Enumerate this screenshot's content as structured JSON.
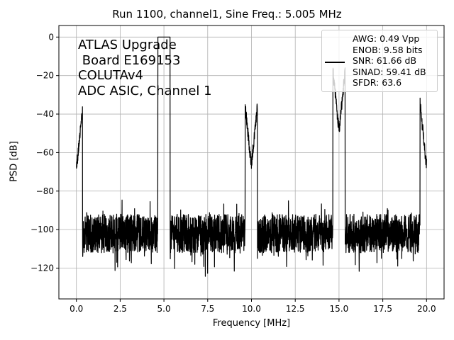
{
  "chart_data": {
    "type": "line",
    "title": "Run 1100, channel1, Sine Freq.: 5.005 MHz",
    "xlabel": "Frequency [MHz]",
    "ylabel": "PSD [dB]",
    "xlim": [
      -1.0,
      21.0
    ],
    "ylim": [
      -136,
      6
    ],
    "x_ticks": [
      0.0,
      2.5,
      5.0,
      7.5,
      10.0,
      12.5,
      15.0,
      17.5,
      20.0
    ],
    "x_tick_labels": [
      "0.0",
      "2.5",
      "5.0",
      "7.5",
      "10.0",
      "12.5",
      "15.0",
      "17.5",
      "20.0"
    ],
    "y_ticks": [
      0,
      -20,
      -40,
      -60,
      -80,
      -100,
      -120
    ],
    "y_tick_labels": [
      "0",
      "−20",
      "−40",
      "−60",
      "−80",
      "−100",
      "−120"
    ],
    "grid": true,
    "legend_position": "top-right",
    "annotation": "ATLAS Upgrade\n Board E169153\nCOLUTAv4\nADC ASIC, Channel 1",
    "series": [
      {
        "name": "AWG: 0.49 Vpp\nENOB: 9.58 bits\nSNR: 61.66 dB\nSINAD: 59.41 dB\nSFDR: 63.6",
        "color": "#000000",
        "x_range": [
          0.0,
          20.0
        ],
        "noise_floor_db": -102,
        "noise_min_db": -130,
        "peaks": [
          {
            "x": 0.0,
            "y": -84
          },
          {
            "x": 5.005,
            "y": 0
          },
          {
            "x": 9.99,
            "y": -82
          },
          {
            "x": 15.0,
            "y": -64
          },
          {
            "x": 19.98,
            "y": -81
          }
        ]
      }
    ]
  }
}
